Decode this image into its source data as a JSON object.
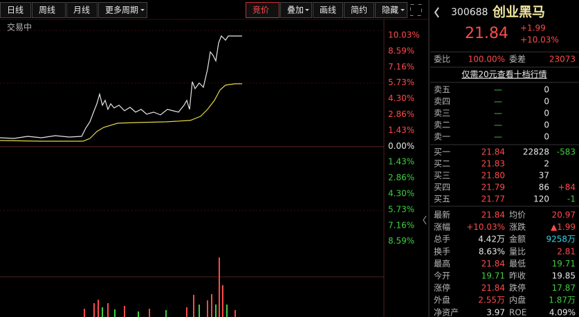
{
  "toolbar": {
    "tabs": [
      "日线",
      "周线",
      "月线",
      "更多周期"
    ],
    "tools": [
      "竞价",
      "叠加",
      "画线",
      "简约",
      "隐藏"
    ]
  },
  "chart": {
    "status": "交易中",
    "axis_labels": [
      "10.03%",
      "8.59%",
      "7.16%",
      "5.73%",
      "4.30%",
      "2.86%",
      "1.43%",
      "0.00%",
      "1.43%",
      "2.86%",
      "4.30%",
      "5.73%",
      "7.16%",
      "8.59%"
    ]
  },
  "quote": {
    "code": "300688",
    "name": "创业黑马",
    "price": "21.84",
    "change": "+1.99",
    "change_pct": "+10.03%"
  },
  "order": {
    "ratio_label": "委比",
    "ratio": "100.00%",
    "diff_label": "委差",
    "diff": "23073",
    "promo": "仅需20元查看十档行情"
  },
  "sell_rows": [
    {
      "label": "卖五",
      "price": "—",
      "volume": "0"
    },
    {
      "label": "卖四",
      "price": "—",
      "volume": "0"
    },
    {
      "label": "卖三",
      "price": "—",
      "volume": "0"
    },
    {
      "label": "卖二",
      "price": "—",
      "volume": "0"
    },
    {
      "label": "卖一",
      "price": "—",
      "volume": "0"
    }
  ],
  "buy_rows": [
    {
      "label": "买一",
      "price": "21.84",
      "volume": "22828",
      "delta": "-583"
    },
    {
      "label": "买二",
      "price": "21.83",
      "volume": "2"
    },
    {
      "label": "买三",
      "price": "21.80",
      "volume": "37"
    },
    {
      "label": "买四",
      "price": "21.79",
      "volume": "86",
      "delta": "+84"
    },
    {
      "label": "买五",
      "price": "21.77",
      "volume": "120",
      "delta": "-1"
    }
  ],
  "stats": [
    [
      {
        "label": "最新",
        "value": "21.84"
      },
      {
        "label": "均价",
        "value": "20.97"
      }
    ],
    [
      {
        "label": "涨幅",
        "value": "+10.03%"
      },
      {
        "label": "涨跌",
        "value": "▲1.99"
      }
    ],
    [
      {
        "label": "总手",
        "value": "4.42万"
      },
      {
        "label": "金额",
        "value": "9258万"
      }
    ],
    [
      {
        "label": "换手",
        "value": "8.63%"
      },
      {
        "label": "量比",
        "value": "2.81"
      }
    ],
    [
      {
        "label": "最高",
        "value": "21.84"
      },
      {
        "label": "最低",
        "value": "19.71"
      }
    ],
    [
      {
        "label": "今开",
        "value": "19.71"
      },
      {
        "label": "昨收",
        "value": "19.85"
      }
    ],
    [
      {
        "label": "涨停",
        "value": "21.84"
      },
      {
        "label": "跌停",
        "value": "17.87"
      }
    ],
    [
      {
        "label": "外盘",
        "value": "2.55万"
      },
      {
        "label": "内盘",
        "value": "1.87万"
      }
    ],
    [
      {
        "label": "净资产",
        "value": "3.97"
      },
      {
        "label": "ROE",
        "value": "4.09%"
      }
    ]
  ]
}
